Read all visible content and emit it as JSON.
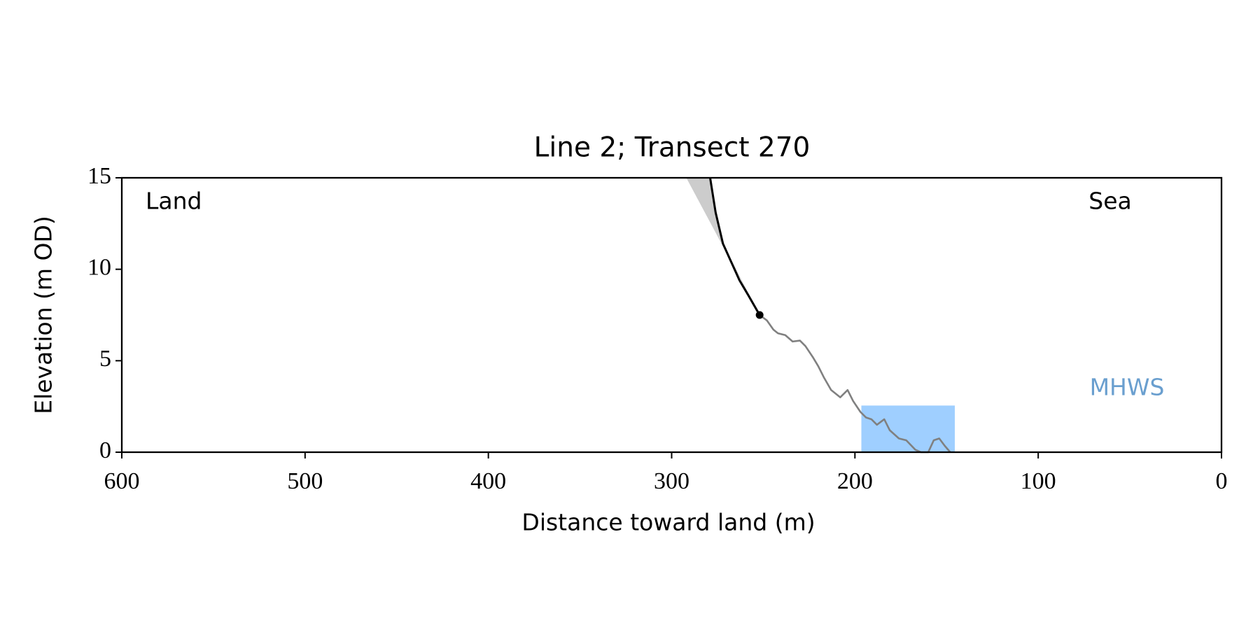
{
  "chart_data": {
    "type": "line",
    "title": "Line 2; Transect 270",
    "xlabel": "Distance toward land (m)",
    "ylabel": "Elevation (m OD)",
    "xlim": [
      600,
      0
    ],
    "ylim": [
      0,
      15
    ],
    "xticks": [
      600,
      500,
      400,
      300,
      200,
      100,
      0
    ],
    "yticks": [
      0,
      5,
      10,
      15
    ],
    "grid": false,
    "annotations": [
      "Land",
      "Sea"
    ],
    "envelope": {
      "color": "#cccccc",
      "x": [
        292,
        279,
        276,
        272,
        252
      ],
      "y": [
        15,
        15,
        13.1,
        11.4,
        7.5
      ]
    },
    "mhws": {
      "label": "MHWS",
      "label_color": "#6a9fcf",
      "color": "#9fcfff",
      "x": [
        196.5,
        145.5
      ],
      "level": 2.55
    },
    "series": [
      {
        "color": "#808080",
        "x": [
          252,
          248,
          244.5,
          242,
          238,
          234,
          230,
          227,
          223,
          220,
          217,
          213,
          208,
          204,
          201,
          197,
          194,
          191,
          188,
          184,
          181,
          176,
          172,
          167,
          164,
          160,
          157,
          154,
          151,
          148
        ],
        "values": [
          7.5,
          7.2,
          6.7,
          6.5,
          6.4,
          6.05,
          6.1,
          5.8,
          5.2,
          4.7,
          4.1,
          3.4,
          3.0,
          3.4,
          2.8,
          2.2,
          1.9,
          1.8,
          1.5,
          1.8,
          1.2,
          0.75,
          0.65,
          0.13,
          0,
          0,
          0.65,
          0.75,
          0.35,
          0
        ]
      },
      {
        "color": "#000000",
        "x": [
          279,
          276,
          272,
          267.5,
          263,
          258,
          252
        ],
        "values": [
          15,
          13.1,
          11.4,
          10.4,
          9.4,
          8.55,
          7.5
        ]
      }
    ],
    "cliff_top": {
      "color": "#000000",
      "x": 252,
      "y": 7.5
    }
  }
}
